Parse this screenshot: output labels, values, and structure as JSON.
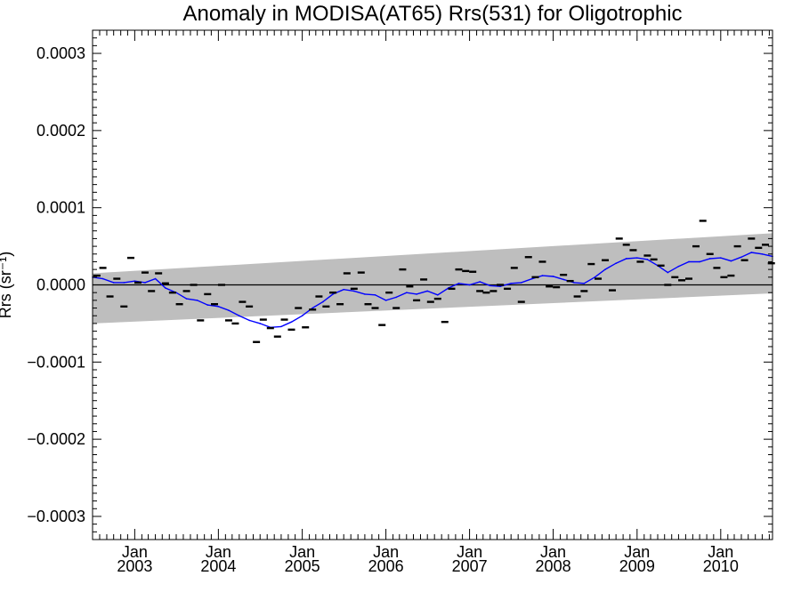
{
  "chart_data": {
    "type": "line",
    "title": "Anomaly in MODISA(AT65) Rrs(531) for Oligotrophic",
    "ylabel": "Rrs (sr⁻¹)",
    "ylim": [
      -0.00033,
      0.00033
    ],
    "xlim": [
      "2002-07-01",
      "2010-08-15"
    ],
    "yticks": [
      {
        "v": 0.0003,
        "label": "0.0003"
      },
      {
        "v": 0.0002,
        "label": "0.0002"
      },
      {
        "v": 0.0001,
        "label": "0.0001"
      },
      {
        "v": 0.0,
        "label": "0.0000"
      },
      {
        "v": -0.0001,
        "label": "−0.0001"
      },
      {
        "v": -0.0002,
        "label": "−0.0002"
      },
      {
        "v": -0.0003,
        "label": "−0.0003"
      }
    ],
    "xticks": [
      {
        "date": "2003-01-01",
        "month": "Jan",
        "year": "2003"
      },
      {
        "date": "2004-01-01",
        "month": "Jan",
        "year": "2004"
      },
      {
        "date": "2005-01-01",
        "month": "Jan",
        "year": "2005"
      },
      {
        "date": "2006-01-01",
        "month": "Jan",
        "year": "2006"
      },
      {
        "date": "2007-01-01",
        "month": "Jan",
        "year": "2007"
      },
      {
        "date": "2008-01-01",
        "month": "Jan",
        "year": "2008"
      },
      {
        "date": "2009-01-01",
        "month": "Jan",
        "year": "2009"
      },
      {
        "date": "2010-01-01",
        "month": "Jan",
        "year": "2010"
      }
    ],
    "grid": false,
    "zero_line": 0,
    "colors": {
      "running_mean": "#0000ff",
      "markers": "#000000",
      "band": "#bebebe"
    },
    "confidence_band": {
      "start": {
        "date": "2002-07-01",
        "upper": 1.5e-05,
        "lower": -5e-05
      },
      "end": {
        "date": "2010-08-15",
        "upper": 6.7e-05,
        "lower": -1.1e-05
      }
    },
    "series": [
      {
        "marker": "dash",
        "points": [
          [
            "2002-07-20",
            1.2e-05
          ],
          [
            "2002-08-15",
            2.2e-05
          ],
          [
            "2002-09-15",
            -1.5e-05
          ],
          [
            "2002-10-15",
            8e-06
          ],
          [
            "2002-11-15",
            -2.8e-05
          ],
          [
            "2002-12-15",
            3.5e-05
          ],
          [
            "2003-01-15",
            3e-06
          ],
          [
            "2003-02-15",
            1.6e-05
          ],
          [
            "2003-03-15",
            -8e-06
          ],
          [
            "2003-04-15",
            1.5e-05
          ],
          [
            "2003-05-15",
            2e-06
          ],
          [
            "2003-06-15",
            -1e-05
          ],
          [
            "2003-07-15",
            -2.5e-05
          ],
          [
            "2003-08-15",
            -8e-06
          ],
          [
            "2003-09-15",
            0.0
          ],
          [
            "2003-10-15",
            -4.6e-05
          ],
          [
            "2003-11-15",
            -1.2e-05
          ],
          [
            "2003-12-15",
            -2.5e-05
          ],
          [
            "2004-01-15",
            0.0
          ],
          [
            "2004-02-15",
            -4.6e-05
          ],
          [
            "2004-03-15",
            -5e-05
          ],
          [
            "2004-04-15",
            -2.2e-05
          ],
          [
            "2004-05-15",
            -2.8e-05
          ],
          [
            "2004-06-15",
            -7.4e-05
          ],
          [
            "2004-07-15",
            -4.5e-05
          ],
          [
            "2004-08-15",
            -5.6e-05
          ],
          [
            "2004-09-15",
            -6.7e-05
          ],
          [
            "2004-10-15",
            -4.5e-05
          ],
          [
            "2004-11-15",
            -5.8e-05
          ],
          [
            "2004-12-15",
            -3e-05
          ],
          [
            "2005-01-15",
            -5.5e-05
          ],
          [
            "2005-02-15",
            -3.2e-05
          ],
          [
            "2005-03-15",
            -1.5e-05
          ],
          [
            "2005-04-15",
            -2.8e-05
          ],
          [
            "2005-05-15",
            -1e-05
          ],
          [
            "2005-06-15",
            -2.5e-05
          ],
          [
            "2005-07-15",
            1.5e-05
          ],
          [
            "2005-08-15",
            -5e-06
          ],
          [
            "2005-09-15",
            1.6e-05
          ],
          [
            "2005-10-15",
            -2.5e-05
          ],
          [
            "2005-11-15",
            -3e-05
          ],
          [
            "2005-12-15",
            -5.2e-05
          ],
          [
            "2006-01-15",
            -1e-05
          ],
          [
            "2006-02-15",
            -3e-05
          ],
          [
            "2006-03-15",
            2e-05
          ],
          [
            "2006-04-15",
            -2e-06
          ],
          [
            "2006-05-15",
            -2e-05
          ],
          [
            "2006-06-15",
            7e-06
          ],
          [
            "2006-07-15",
            -2.2e-05
          ],
          [
            "2006-08-15",
            -1.8e-05
          ],
          [
            "2006-09-15",
            -4.8e-05
          ],
          [
            "2006-10-15",
            -5e-06
          ],
          [
            "2006-11-15",
            2e-05
          ],
          [
            "2006-12-15",
            1.8e-05
          ],
          [
            "2007-01-15",
            1.7e-05
          ],
          [
            "2007-02-15",
            -8e-06
          ],
          [
            "2007-03-15",
            -1e-05
          ],
          [
            "2007-04-15",
            -8e-06
          ],
          [
            "2007-05-15",
            0.0
          ],
          [
            "2007-06-15",
            -5e-06
          ],
          [
            "2007-07-15",
            2.2e-05
          ],
          [
            "2007-08-15",
            -2.2e-05
          ],
          [
            "2007-09-15",
            3.6e-05
          ],
          [
            "2007-10-15",
            1e-05
          ],
          [
            "2007-11-15",
            3e-05
          ],
          [
            "2007-12-15",
            -2e-06
          ],
          [
            "2008-01-15",
            -3e-06
          ],
          [
            "2008-02-15",
            1.3e-05
          ],
          [
            "2008-03-15",
            5e-06
          ],
          [
            "2008-04-15",
            -1.5e-05
          ],
          [
            "2008-05-15",
            -8e-06
          ],
          [
            "2008-06-15",
            2.7e-05
          ],
          [
            "2008-07-15",
            8e-06
          ],
          [
            "2008-08-15",
            3.2e-05
          ],
          [
            "2008-09-15",
            -7e-06
          ],
          [
            "2008-10-15",
            6e-05
          ],
          [
            "2008-11-15",
            5.2e-05
          ],
          [
            "2008-12-15",
            4.5e-05
          ],
          [
            "2009-01-15",
            3e-05
          ],
          [
            "2009-02-15",
            3.8e-05
          ],
          [
            "2009-03-15",
            3.3e-05
          ],
          [
            "2009-04-15",
            2.5e-05
          ],
          [
            "2009-05-15",
            0.0
          ],
          [
            "2009-06-15",
            1e-05
          ],
          [
            "2009-07-15",
            6e-06
          ],
          [
            "2009-08-15",
            8e-06
          ],
          [
            "2009-09-15",
            5e-05
          ],
          [
            "2009-10-15",
            8.3e-05
          ],
          [
            "2009-11-15",
            4e-05
          ],
          [
            "2009-12-15",
            2.2e-05
          ],
          [
            "2010-01-15",
            1e-05
          ],
          [
            "2010-02-15",
            1.2e-05
          ],
          [
            "2010-03-15",
            5e-05
          ],
          [
            "2010-04-15",
            3.2e-05
          ],
          [
            "2010-05-15",
            6e-05
          ],
          [
            "2010-06-15",
            4.8e-05
          ],
          [
            "2010-07-15",
            5.2e-05
          ],
          [
            "2010-08-10",
            2.8e-05
          ]
        ]
      },
      {
        "marker": "line",
        "color": "#0000ff",
        "points": [
          [
            "2002-07-01",
            1e-05
          ],
          [
            "2002-08-15",
            8e-06
          ],
          [
            "2002-10-01",
            3e-06
          ],
          [
            "2002-11-15",
            3e-06
          ],
          [
            "2003-01-01",
            5e-06
          ],
          [
            "2003-02-15",
            3e-06
          ],
          [
            "2003-04-01",
            8e-06
          ],
          [
            "2003-05-15",
            -4e-06
          ],
          [
            "2003-07-01",
            -1e-05
          ],
          [
            "2003-08-15",
            -1.8e-05
          ],
          [
            "2003-10-01",
            -2e-05
          ],
          [
            "2003-11-15",
            -2.6e-05
          ],
          [
            "2004-01-01",
            -2.8e-05
          ],
          [
            "2004-02-15",
            -3.3e-05
          ],
          [
            "2004-04-01",
            -4e-05
          ],
          [
            "2004-05-15",
            -4.6e-05
          ],
          [
            "2004-07-01",
            -5e-05
          ],
          [
            "2004-08-15",
            -5.5e-05
          ],
          [
            "2004-10-01",
            -5.4e-05
          ],
          [
            "2004-11-15",
            -4.8e-05
          ],
          [
            "2005-01-01",
            -4e-05
          ],
          [
            "2005-02-15",
            -3e-05
          ],
          [
            "2005-04-01",
            -2.2e-05
          ],
          [
            "2005-05-15",
            -1.2e-05
          ],
          [
            "2005-07-01",
            -6e-06
          ],
          [
            "2005-08-15",
            -8e-06
          ],
          [
            "2005-10-01",
            -1.2e-05
          ],
          [
            "2005-11-15",
            -1.3e-05
          ],
          [
            "2006-01-01",
            -2e-05
          ],
          [
            "2006-02-15",
            -1.6e-05
          ],
          [
            "2006-04-01",
            -1e-05
          ],
          [
            "2006-05-15",
            -1.2e-05
          ],
          [
            "2006-07-01",
            -8e-06
          ],
          [
            "2006-08-15",
            -1.3e-05
          ],
          [
            "2006-10-01",
            -4e-06
          ],
          [
            "2006-11-15",
            2e-06
          ],
          [
            "2007-01-01",
            0.0
          ],
          [
            "2007-02-15",
            4e-06
          ],
          [
            "2007-04-01",
            -1e-06
          ],
          [
            "2007-05-15",
            -2e-06
          ],
          [
            "2007-07-01",
            2e-06
          ],
          [
            "2007-08-15",
            3e-06
          ],
          [
            "2007-10-01",
            8e-06
          ],
          [
            "2007-11-15",
            1.2e-05
          ],
          [
            "2008-01-01",
            1.1e-05
          ],
          [
            "2008-02-15",
            7e-06
          ],
          [
            "2008-04-01",
            3e-06
          ],
          [
            "2008-05-15",
            2e-06
          ],
          [
            "2008-07-01",
            1e-05
          ],
          [
            "2008-08-15",
            2e-05
          ],
          [
            "2008-10-01",
            2.8e-05
          ],
          [
            "2008-11-15",
            3.4e-05
          ],
          [
            "2009-01-01",
            3.5e-05
          ],
          [
            "2009-02-15",
            3.3e-05
          ],
          [
            "2009-04-01",
            2.5e-05
          ],
          [
            "2009-05-15",
            1.6e-05
          ],
          [
            "2009-07-01",
            2.4e-05
          ],
          [
            "2009-08-15",
            3e-05
          ],
          [
            "2009-10-01",
            3e-05
          ],
          [
            "2009-11-15",
            3.4e-05
          ],
          [
            "2010-01-01",
            3.5e-05
          ],
          [
            "2010-02-15",
            3.1e-05
          ],
          [
            "2010-04-01",
            3.6e-05
          ],
          [
            "2010-05-15",
            4.2e-05
          ],
          [
            "2010-07-01",
            4e-05
          ],
          [
            "2010-08-15",
            3.7e-05
          ]
        ]
      }
    ]
  }
}
